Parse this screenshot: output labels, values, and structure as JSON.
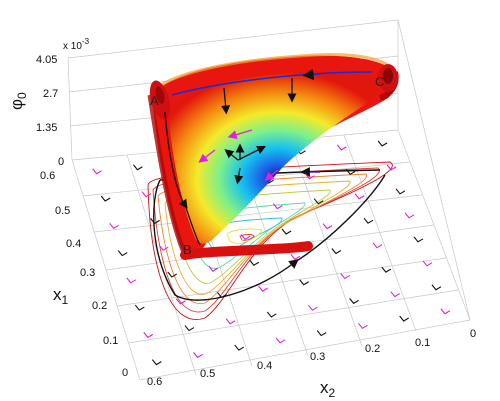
{
  "chart_data": {
    "type": "surface",
    "zlabel": "φ",
    "zlabel_subscript": "0",
    "xlabel": "x",
    "xlabel_subscript": "2",
    "ylabel": "x",
    "ylabel_subscript": "1",
    "z_scale_note": "x 10",
    "z_scale_exponent": "-3",
    "z_ticks": [
      "0",
      "1.35",
      "2.7",
      "4.05"
    ],
    "x2_ticks": [
      "0.6",
      "0.5",
      "0.4",
      "0.3",
      "0.2",
      "0.1",
      "0"
    ],
    "x1_ticks": [
      "0",
      "0.1",
      "0.2",
      "0.3",
      "0.4",
      "0.5",
      "0.6"
    ],
    "zlim": [
      0,
      0.00405
    ],
    "x2lim": [
      0,
      0.6
    ],
    "x1lim": [
      0,
      0.6
    ],
    "grid": true,
    "colormap": "jet",
    "points": [
      {
        "label": "A"
      },
      {
        "label": "B"
      },
      {
        "label": "C"
      }
    ],
    "colors": {
      "surface_rim": "#e8160e",
      "trajectory": "#1a1a1a",
      "flow_arrows_a": "#e020e0",
      "flow_arrows_b": "#111111",
      "top_curve": "#1f2bd0"
    }
  }
}
